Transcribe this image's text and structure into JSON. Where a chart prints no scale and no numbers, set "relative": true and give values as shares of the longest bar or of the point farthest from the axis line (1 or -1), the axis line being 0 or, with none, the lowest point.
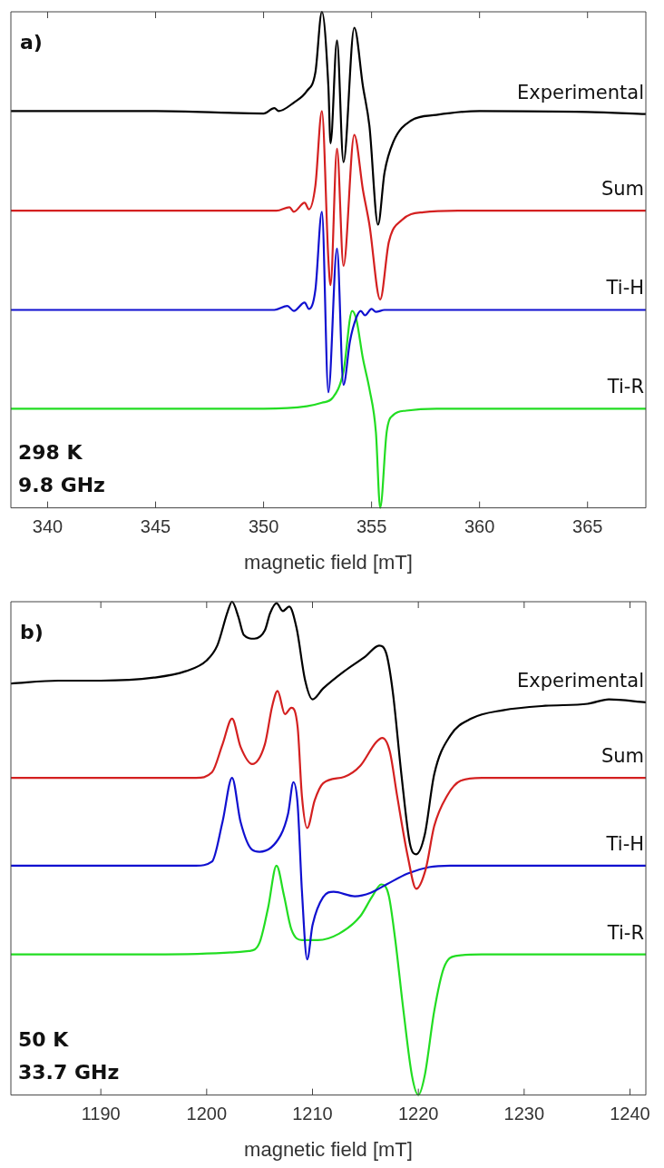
{
  "chart_data": [
    {
      "type": "line",
      "xlabel": "magnetic field [mT]",
      "relative": true,
      "legend": false,
      "xlim": [
        338.3,
        367.7
      ],
      "xticks": [
        340,
        345,
        350,
        355,
        360,
        365
      ],
      "annotations": [
        "a)",
        "298 K",
        "9.8 GHz"
      ],
      "series": [
        {
          "name": "Experimental",
          "color": "#000000",
          "x": [
            338.3,
            345,
            350,
            350.5,
            350.7,
            351.4,
            352,
            352.4,
            352.7,
            353.0,
            353.1,
            353.4,
            353.7,
            354.2,
            354.6,
            354.9,
            355.3,
            355.6,
            356,
            356.8,
            358,
            360,
            365,
            367.7
          ],
          "values": [
            0.8,
            0.8,
            0.795,
            0.806,
            0.8,
            0.817,
            0.84,
            0.878,
            1,
            0.85,
            0.735,
            0.942,
            0.697,
            0.968,
            0.85,
            0.77,
            0.571,
            0.676,
            0.737,
            0.78,
            0.792,
            0.8,
            0.798,
            0.794
          ]
        },
        {
          "name": "Sum",
          "color": "#d42020",
          "x": [
            338.3,
            350,
            350.6,
            351.2,
            351.4,
            351.9,
            352.1,
            352.4,
            352.7,
            353.0,
            353.1,
            353.4,
            353.7,
            354.2,
            354.6,
            354.9,
            355.4,
            355.8,
            356.4,
            357.4,
            359,
            367.7
          ],
          "values": [
            0.599,
            0.599,
            0.599,
            0.606,
            0.597,
            0.615,
            0.602,
            0.65,
            0.8,
            0.501,
            0.449,
            0.724,
            0.488,
            0.752,
            0.641,
            0.571,
            0.42,
            0.536,
            0.58,
            0.596,
            0.599,
            0.599
          ]
        },
        {
          "name": "Ti-H",
          "color": "#1010d0",
          "x": [
            338.3,
            350.5,
            351.1,
            351.4,
            351.9,
            352.1,
            352.4,
            352.7,
            353.0,
            353.4,
            353.7,
            354.0,
            354.3,
            354.5,
            354.7,
            355,
            355.2,
            355.6,
            367.7
          ],
          "values": [
            0.399,
            0.399,
            0.407,
            0.397,
            0.414,
            0.401,
            0.44,
            0.597,
            0.233,
            0.523,
            0.248,
            0.336,
            0.384,
            0.397,
            0.388,
            0.401,
            0.395,
            0.399,
            0.399
          ]
        },
        {
          "name": "Ti-R",
          "color": "#22dd22",
          "x": [
            338.3,
            350,
            352,
            352.7,
            353.2,
            353.7,
            354.1,
            354.3,
            354.6,
            354.9,
            355.2,
            355.4,
            355.7,
            356,
            356.6,
            358,
            367.7
          ],
          "values": [
            0.2,
            0.2,
            0.205,
            0.212,
            0.222,
            0.275,
            0.397,
            0.379,
            0.301,
            0.24,
            0.153,
            0,
            0.153,
            0.187,
            0.196,
            0.2,
            0.2
          ]
        }
      ]
    },
    {
      "type": "line",
      "xlabel": "magnetic field [mT]",
      "relative": true,
      "legend": false,
      "xlim": [
        1181.5,
        1241.5
      ],
      "xticks": [
        1190,
        1200,
        1210,
        1220,
        1230,
        1240
      ],
      "annotations": [
        "b)",
        "50 K",
        "33.7 GHz"
      ],
      "series": [
        {
          "name": "Experimental",
          "color": "#000000",
          "x": [
            1181.5,
            1186,
            1190,
            1195,
            1198,
            1200,
            1201,
            1202,
            1202.4,
            1203,
            1203.5,
            1204.5,
            1205.5,
            1206,
            1206.6,
            1207.2,
            1207.8,
            1208.5,
            1209.3,
            1210,
            1211,
            1213,
            1215,
            1216.3,
            1217,
            1217.6,
            1218.4,
            1219.2,
            1219.8,
            1220.6,
            1221.5,
            1223,
            1225,
            1228,
            1232,
            1236,
            1238,
            1241.5
          ],
          "values": [
            0.834,
            0.84,
            0.84,
            0.846,
            0.859,
            0.881,
            0.911,
            0.981,
            1.0,
            0.969,
            0.933,
            0.925,
            0.942,
            0.977,
            0.997,
            0.981,
            0.99,
            0.946,
            0.841,
            0.802,
            0.824,
            0.859,
            0.889,
            0.911,
            0.893,
            0.815,
            0.65,
            0.51,
            0.488,
            0.527,
            0.65,
            0.728,
            0.763,
            0.78,
            0.789,
            0.793,
            0.802,
            0.796
          ]
        },
        {
          "name": "Sum",
          "color": "#d42020",
          "x": [
            1181.5,
            1199,
            1200.5,
            1201.5,
            1202.4,
            1203.2,
            1204.3,
            1205.5,
            1206.2,
            1206.7,
            1207.4,
            1208,
            1208.6,
            1209,
            1209.5,
            1210.2,
            1211,
            1213,
            1214.5,
            1216,
            1216.6,
            1217.3,
            1218,
            1219,
            1219.8,
            1220.7,
            1221.5,
            1222.7,
            1224,
            1226,
            1241.5
          ],
          "values": [
            0.643,
            0.643,
            0.654,
            0.711,
            0.763,
            0.706,
            0.671,
            0.711,
            0.789,
            0.819,
            0.772,
            0.785,
            0.745,
            0.606,
            0.541,
            0.597,
            0.632,
            0.645,
            0.667,
            0.715,
            0.724,
            0.697,
            0.606,
            0.484,
            0.418,
            0.458,
            0.545,
            0.606,
            0.637,
            0.643,
            0.643
          ]
        },
        {
          "name": "Ti-H",
          "color": "#1010d0",
          "x": [
            1181.5,
            1199,
            1200.5,
            1201.5,
            1202.4,
            1203.2,
            1204.3,
            1205,
            1207,
            1207.7,
            1208.2,
            1208.6,
            1209,
            1209.5,
            1210,
            1211,
            1212,
            1214,
            1215.5,
            1217,
            1219,
            1221,
            1223,
            1241.5
          ],
          "values": [
            0.465,
            0.465,
            0.473,
            0.554,
            0.643,
            0.554,
            0.497,
            0.493,
            0.527,
            0.571,
            0.634,
            0.588,
            0.414,
            0.275,
            0.344,
            0.401,
            0.412,
            0.403,
            0.41,
            0.427,
            0.449,
            0.462,
            0.465,
            0.465
          ]
        },
        {
          "name": "Ti-R",
          "color": "#22dd22",
          "x": [
            1181.5,
            1195,
            1204,
            1205,
            1205.8,
            1206.6,
            1207.3,
            1208,
            1209,
            1210.5,
            1212.5,
            1214.5,
            1215.6,
            1216.5,
            1217.2,
            1217.8,
            1218.6,
            1219.4,
            1220,
            1220.6,
            1221.5,
            1222.4,
            1223.5,
            1226,
            1241.5
          ],
          "values": [
            0.285,
            0.285,
            0.292,
            0.309,
            0.379,
            0.465,
            0.405,
            0.336,
            0.314,
            0.314,
            0.327,
            0.362,
            0.401,
            0.427,
            0.405,
            0.318,
            0.17,
            0.039,
            0,
            0.039,
            0.17,
            0.257,
            0.282,
            0.285,
            0.285
          ]
        }
      ]
    }
  ]
}
